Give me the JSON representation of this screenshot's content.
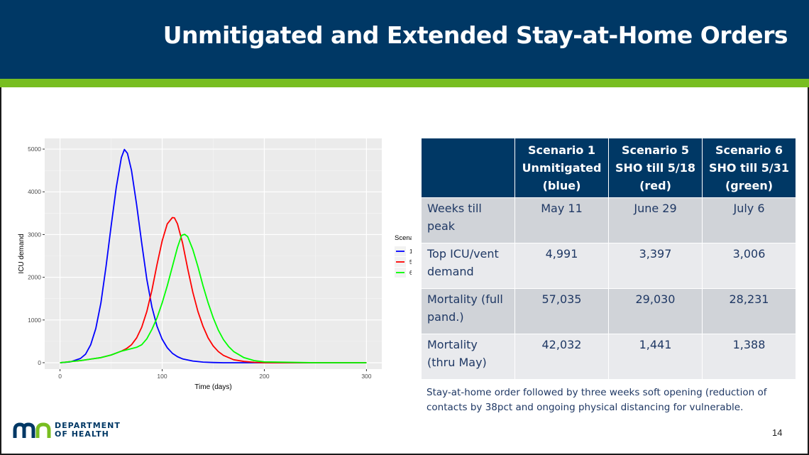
{
  "slide": {
    "title": "Unmitigated and Extended Stay-at-Home Orders",
    "page_number": "14",
    "footnote": "Stay-at-home order followed by three weeks soft opening (reduction of contacts by 38pct and ongoing physical distancing for vulnerable.",
    "logo": {
      "line1": "DEPARTMENT",
      "line2": "OF HEALTH",
      "mark": "MN"
    }
  },
  "colors": {
    "header": "#003865",
    "accent_stripe": "#78be21",
    "panel": "#ebebeb",
    "series_1": "#0000ff",
    "series_5": "#ff0000",
    "series_6": "#00ff00"
  },
  "table": {
    "headers": [
      "",
      "Scenario 1 Unmitigated (blue)",
      "Scenario 5 SHO till 5/18 (red)",
      "Scenario 6 SHO till 5/31 (green)"
    ],
    "rows": [
      {
        "label": "Weeks till peak",
        "values": [
          "May 11",
          "June 29",
          "July 6"
        ]
      },
      {
        "label": "Top ICU/vent demand",
        "values": [
          "4,991",
          "3,397",
          "3,006"
        ]
      },
      {
        "label": "Mortality (full pand.)",
        "values": [
          "57,035",
          "29,030",
          "28,231"
        ]
      },
      {
        "label": "Mortality (thru May)",
        "values": [
          "42,032",
          "1,441",
          "1,388"
        ]
      }
    ]
  },
  "chart_data": {
    "type": "line",
    "xlabel": "Time (days)",
    "ylabel": "ICU demand",
    "xlim": [
      -15,
      315
    ],
    "ylim": [
      -150,
      5250
    ],
    "xticks": [
      0,
      100,
      200,
      300
    ],
    "yticks": [
      0,
      1000,
      2000,
      3000,
      4000,
      5000
    ],
    "grid": true,
    "legend": {
      "title": "Scenarios",
      "position": "right"
    },
    "series": [
      {
        "name": "1",
        "color": "#0000ff",
        "x": [
          0,
          10,
          20,
          25,
          30,
          35,
          40,
          45,
          50,
          55,
          60,
          63,
          66,
          70,
          75,
          80,
          85,
          90,
          95,
          100,
          105,
          110,
          115,
          120,
          130,
          140,
          150,
          160,
          180,
          200,
          250,
          300
        ],
        "y": [
          0,
          20,
          100,
          200,
          420,
          800,
          1400,
          2250,
          3200,
          4100,
          4800,
          4991,
          4900,
          4500,
          3700,
          2800,
          1950,
          1300,
          850,
          550,
          350,
          220,
          140,
          90,
          40,
          15,
          5,
          0,
          0,
          0,
          0,
          0
        ]
      },
      {
        "name": "5",
        "color": "#ff0000",
        "x": [
          0,
          20,
          40,
          50,
          60,
          65,
          70,
          75,
          80,
          85,
          90,
          95,
          100,
          105,
          110,
          112,
          115,
          120,
          125,
          130,
          135,
          140,
          145,
          150,
          155,
          160,
          170,
          180,
          190,
          200,
          250,
          300
        ],
        "y": [
          0,
          50,
          120,
          180,
          270,
          330,
          420,
          580,
          830,
          1200,
          1700,
          2300,
          2850,
          3250,
          3397,
          3390,
          3250,
          2800,
          2200,
          1650,
          1200,
          850,
          580,
          390,
          260,
          170,
          70,
          30,
          10,
          0,
          0,
          0
        ]
      },
      {
        "name": "6",
        "color": "#00ff00",
        "x": [
          0,
          20,
          40,
          50,
          60,
          70,
          75,
          80,
          85,
          90,
          95,
          100,
          105,
          110,
          115,
          119,
          122,
          125,
          130,
          135,
          140,
          145,
          150,
          155,
          160,
          165,
          170,
          180,
          190,
          200,
          250,
          300
        ],
        "y": [
          0,
          50,
          120,
          180,
          270,
          330,
          360,
          420,
          560,
          780,
          1050,
          1400,
          1800,
          2250,
          2700,
          2980,
          3006,
          2950,
          2650,
          2250,
          1800,
          1400,
          1050,
          760,
          540,
          380,
          260,
          120,
          50,
          20,
          0,
          0
        ]
      }
    ]
  }
}
